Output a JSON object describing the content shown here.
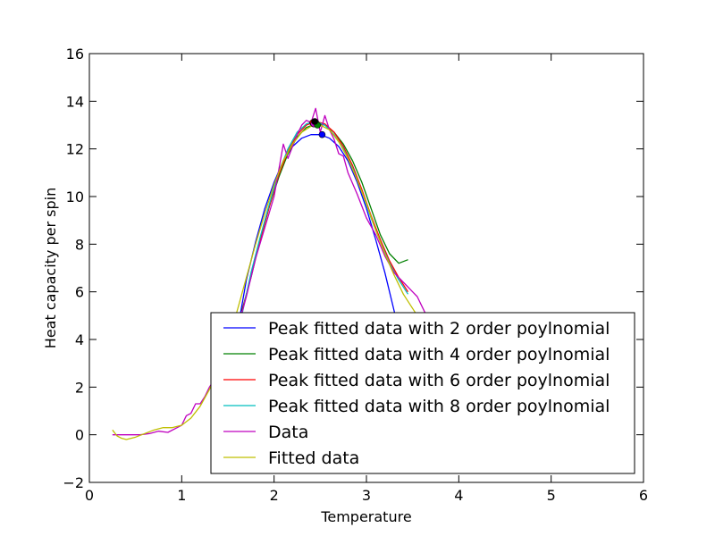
{
  "chart_data": {
    "type": "line",
    "title": "",
    "xlabel": "Temperature",
    "ylabel": "Heat capacity per spin",
    "xlim": [
      0,
      6
    ],
    "ylim": [
      -2,
      16
    ],
    "xticks": [
      "0",
      "1",
      "2",
      "3",
      "4",
      "5",
      "6"
    ],
    "yticks": [
      "−2",
      "0",
      "2",
      "4",
      "6",
      "8",
      "10",
      "12",
      "14",
      "16"
    ],
    "grid": false,
    "legend_placement": "lower-right",
    "series": [
      {
        "name": "Peak fitted data with 2 order poylnomial",
        "color": "#0000ff",
        "x": [
          1.6,
          1.7,
          1.8,
          1.9,
          2.0,
          2.1,
          2.2,
          2.3,
          2.4,
          2.5,
          2.6,
          2.7,
          2.8,
          2.9,
          3.0,
          3.1,
          3.2,
          3.3,
          3.4
        ],
        "y": [
          4.3,
          6.5,
          8.1,
          9.5,
          10.6,
          11.5,
          12.1,
          12.45,
          12.6,
          12.6,
          12.45,
          12.1,
          11.5,
          10.6,
          9.5,
          8.2,
          6.8,
          5.2,
          3.5
        ]
      },
      {
        "name": "Peak fitted data with 4 order poylnomial",
        "color": "#008000",
        "x": [
          1.65,
          1.75,
          1.85,
          1.95,
          2.05,
          2.15,
          2.25,
          2.35,
          2.45,
          2.55,
          2.65,
          2.75,
          2.85,
          2.95,
          3.05,
          3.15,
          3.25,
          3.35,
          3.45
        ],
        "y": [
          5.2,
          6.6,
          8.2,
          9.6,
          10.8,
          11.8,
          12.5,
          12.9,
          13.05,
          13.0,
          12.7,
          12.2,
          11.5,
          10.6,
          9.5,
          8.4,
          7.6,
          7.2,
          7.35
        ]
      },
      {
        "name": "Peak fitted data with 6 order poylnomial",
        "color": "#ff0000",
        "x": [
          1.65,
          1.75,
          1.85,
          1.95,
          2.05,
          2.15,
          2.25,
          2.35,
          2.45,
          2.55,
          2.65,
          2.75,
          2.85,
          2.95,
          3.05,
          3.15,
          3.25,
          3.35,
          3.45
        ],
        "y": [
          5.1,
          6.7,
          8.2,
          9.6,
          10.9,
          11.9,
          12.6,
          13.0,
          13.15,
          13.05,
          12.7,
          12.1,
          11.3,
          10.3,
          9.2,
          8.2,
          7.3,
          6.6,
          6.0
        ]
      },
      {
        "name": "Peak fitted data with 8 order poylnomial",
        "color": "#00bfbf",
        "x": [
          1.65,
          1.75,
          1.85,
          1.95,
          2.05,
          2.15,
          2.25,
          2.35,
          2.45,
          2.55,
          2.65,
          2.75,
          2.85,
          2.95,
          3.05,
          3.15,
          3.25,
          3.35,
          3.45
        ],
        "y": [
          5.0,
          6.8,
          8.3,
          9.7,
          11.0,
          12.0,
          12.7,
          13.05,
          13.15,
          13.0,
          12.6,
          12.0,
          11.2,
          10.2,
          9.1,
          8.1,
          7.2,
          6.5,
          5.9
        ]
      },
      {
        "name": "Data",
        "color": "#bf00bf",
        "x": [
          0.25,
          0.35,
          0.45,
          0.55,
          0.65,
          0.75,
          0.85,
          0.95,
          1.0,
          1.05,
          1.1,
          1.15,
          1.2,
          1.25,
          1.3,
          1.4,
          1.5,
          1.6,
          1.7,
          1.8,
          1.9,
          2.0,
          2.05,
          2.1,
          2.15,
          2.2,
          2.25,
          2.3,
          2.35,
          2.4,
          2.45,
          2.5,
          2.55,
          2.6,
          2.65,
          2.7,
          2.75,
          2.8,
          2.9,
          3.0,
          3.1,
          3.2,
          3.3,
          3.4,
          3.5,
          3.55,
          3.6,
          3.65
        ],
        "y": [
          0.0,
          0.0,
          0.0,
          0.0,
          0.05,
          0.15,
          0.1,
          0.3,
          0.4,
          0.8,
          0.9,
          1.3,
          1.3,
          1.6,
          2.0,
          2.6,
          3.4,
          4.4,
          5.8,
          7.4,
          8.7,
          10.0,
          11.1,
          12.2,
          11.6,
          12.1,
          12.6,
          13.0,
          13.2,
          13.1,
          13.7,
          12.7,
          13.4,
          12.8,
          12.4,
          11.8,
          11.7,
          11.0,
          10.1,
          9.1,
          8.4,
          7.5,
          6.8,
          6.4,
          6.0,
          5.8,
          5.4,
          5.0
        ]
      },
      {
        "name": "Fitted data",
        "color": "#bfbf00",
        "x": [
          0.25,
          0.3,
          0.35,
          0.4,
          0.5,
          0.6,
          0.7,
          0.8,
          0.9,
          1.0,
          1.1,
          1.2,
          1.3,
          1.4,
          1.5,
          1.6,
          1.7,
          1.8,
          1.9,
          2.0,
          2.1,
          2.2,
          2.3,
          2.4,
          2.5,
          2.6,
          2.7,
          2.8,
          2.9,
          3.0,
          3.1,
          3.2,
          3.3,
          3.4,
          3.5,
          3.6,
          3.7
        ],
        "y": [
          0.2,
          -0.05,
          -0.15,
          -0.2,
          -0.1,
          0.05,
          0.2,
          0.3,
          0.3,
          0.4,
          0.7,
          1.2,
          1.9,
          2.8,
          3.9,
          5.2,
          6.6,
          8.0,
          9.3,
          10.5,
          11.5,
          12.2,
          12.7,
          12.95,
          13.0,
          12.8,
          12.3,
          11.6,
          10.7,
          9.7,
          8.6,
          7.6,
          6.7,
          5.9,
          5.3,
          4.7,
          4.2
        ]
      }
    ],
    "peak_markers": [
      {
        "x": 2.42,
        "y": 13.1,
        "color": "#ff0000"
      },
      {
        "x": 2.45,
        "y": 13.1,
        "color": "#00bfbf"
      },
      {
        "x": 2.43,
        "y": 13.05,
        "color": "#bf00bf"
      },
      {
        "x": 2.47,
        "y": 13.0,
        "color": "#008000"
      },
      {
        "x": 2.52,
        "y": 12.6,
        "color": "#0000ff"
      },
      {
        "x": 2.44,
        "y": 13.15,
        "color": "#000000"
      }
    ]
  }
}
